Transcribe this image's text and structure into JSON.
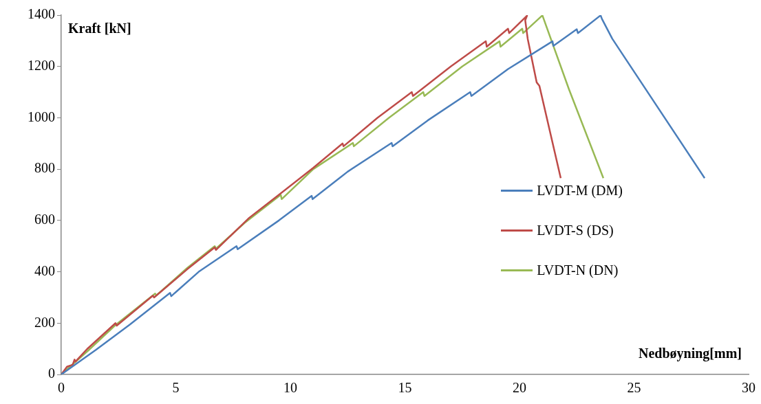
{
  "chart_data": {
    "type": "line",
    "xlabel": "Nedbøyning[mm]",
    "ylabel": "Kraft [kN]",
    "xlim": [
      0,
      30
    ],
    "xticks": [
      0,
      5,
      10,
      15,
      20,
      25,
      30
    ],
    "ylim": [
      0,
      1400
    ],
    "yticks": [
      0,
      200,
      400,
      600,
      800,
      1000,
      1200,
      1400
    ],
    "grid": false,
    "legend": "right",
    "marker": "none",
    "line_style": "solid",
    "series": [
      {
        "name": "LVDT-M (DM)",
        "color": "#4a7ebb",
        "x": [
          0,
          1.5,
          3,
          4.75,
          4.8,
          6,
          7.65,
          7.7,
          9.5,
          10.93,
          10.97,
          12.5,
          14.42,
          14.46,
          16,
          17.85,
          17.9,
          19.5,
          21.44,
          21.48,
          22.5,
          22.55,
          23.54,
          23.6,
          24.05,
          24.65,
          28.08
        ],
        "values": [
          0,
          95,
          195,
          318,
          305,
          400,
          500,
          488,
          600,
          696,
          683,
          790,
          902,
          889,
          990,
          1100,
          1085,
          1190,
          1298,
          1280,
          1345,
          1330,
          1399,
          1385,
          1308,
          1227,
          765
        ]
      },
      {
        "name": "LVDT-S (DS)",
        "color": "#be4b48",
        "x": [
          0,
          0.25,
          0.5,
          0.58,
          0.62,
          1.13,
          2.37,
          2.42,
          4.0,
          4.05,
          5.5,
          6.7,
          6.75,
          8.2,
          9.5,
          11,
          12.28,
          12.32,
          13.8,
          15.3,
          15.35,
          17,
          18.53,
          18.57,
          19.5,
          19.55,
          20.33,
          20.25,
          20.36,
          20.75,
          20.87,
          21.8
        ],
        "values": [
          0,
          30,
          38,
          58,
          50,
          99,
          200,
          190,
          307,
          300,
          410,
          495,
          485,
          610,
          700,
          805,
          900,
          889,
          1000,
          1100,
          1085,
          1200,
          1298,
          1277,
          1347,
          1330,
          1398,
          1380,
          1307,
          1138,
          1124,
          765
        ]
      },
      {
        "name": "LVDT-N (DN)",
        "color": "#98b954",
        "x": [
          0,
          1.2,
          2.4,
          4.1,
          4.15,
          5.5,
          6.7,
          6.75,
          8,
          9.58,
          9.62,
          11,
          12.73,
          12.77,
          14.3,
          15.8,
          15.85,
          17.5,
          19.13,
          19.17,
          20.12,
          20.16,
          21.0,
          22.16,
          23.66
        ],
        "values": [
          0,
          95,
          195,
          315,
          308,
          415,
          500,
          490,
          590,
          700,
          683,
          800,
          902,
          889,
          1000,
          1100,
          1085,
          1200,
          1298,
          1277,
          1347,
          1330,
          1399,
          1111,
          765
        ]
      }
    ]
  }
}
